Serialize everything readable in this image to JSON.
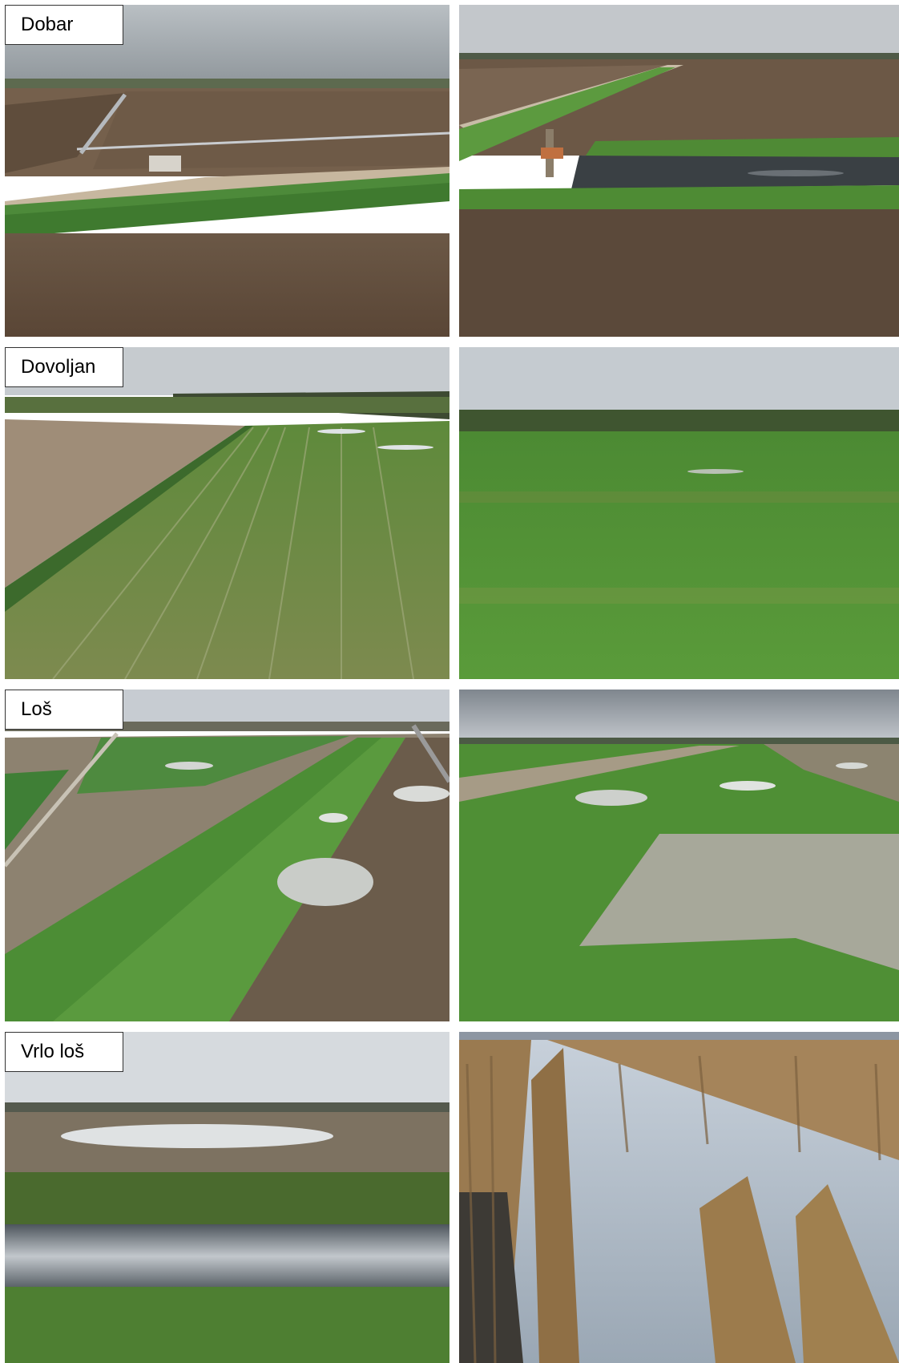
{
  "rows": [
    {
      "label": "Dobar",
      "left": {
        "icon": "field-with-irrigation-pivot-photo"
      },
      "right": {
        "icon": "field-with-drainage-canal-and-pump-photo"
      }
    },
    {
      "label": "Dovoljan",
      "left": {
        "icon": "green-crop-field-aerial-photo"
      },
      "right": {
        "icon": "green-crop-field-with-forest-photo"
      }
    },
    {
      "label": "Loš",
      "left": {
        "icon": "field-with-puddles-aerial-photo"
      },
      "right": {
        "icon": "field-with-standing-water-photo"
      }
    },
    {
      "label": "Vrlo loš",
      "left": {
        "icon": "flooded-field-and-canal-photo"
      },
      "right": {
        "icon": "flooded-corn-field-photo"
      }
    }
  ]
}
